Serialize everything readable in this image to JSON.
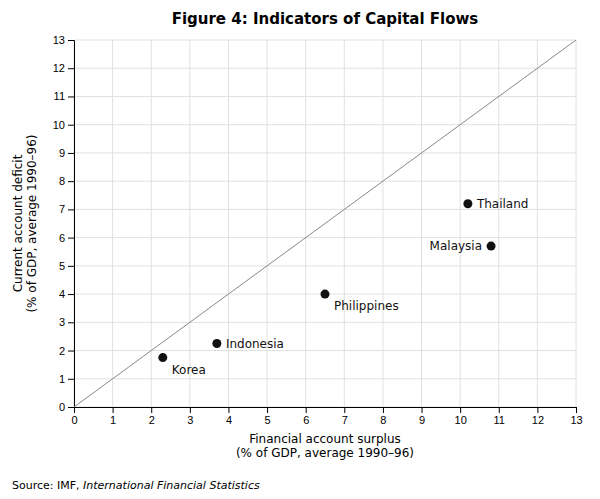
{
  "chart_data": {
    "type": "scatter",
    "title": "Figure 4: Indicators of Capital Flows",
    "xlabel": "Financial account surplus\n(% of GDP, average 1990–96)",
    "ylabel": "Current account deficit\n(% of GDP, average 1990–96)",
    "annotations": [
      "Source: IMF, ",
      "International Financial Statistics"
    ],
    "labels": [
      "Thailand",
      "Malaysia",
      "Philippines",
      "Indonesia",
      "Korea"
    ],
    "x": [
      10.2,
      10.8,
      6.5,
      3.7,
      2.3
    ],
    "values": [
      7.2,
      5.7,
      4.0,
      2.25,
      1.75
    ],
    "color": "#111111",
    "xlim": [
      0,
      13
    ],
    "ylim": [
      0,
      13
    ],
    "xticks": [
      0,
      1,
      2,
      3,
      4,
      5,
      6,
      7,
      8,
      9,
      10,
      11,
      12,
      13
    ],
    "yticks": [
      0,
      1,
      2,
      3,
      4,
      5,
      6,
      7,
      8,
      9,
      10,
      11,
      12,
      13
    ],
    "grid": true
  }
}
